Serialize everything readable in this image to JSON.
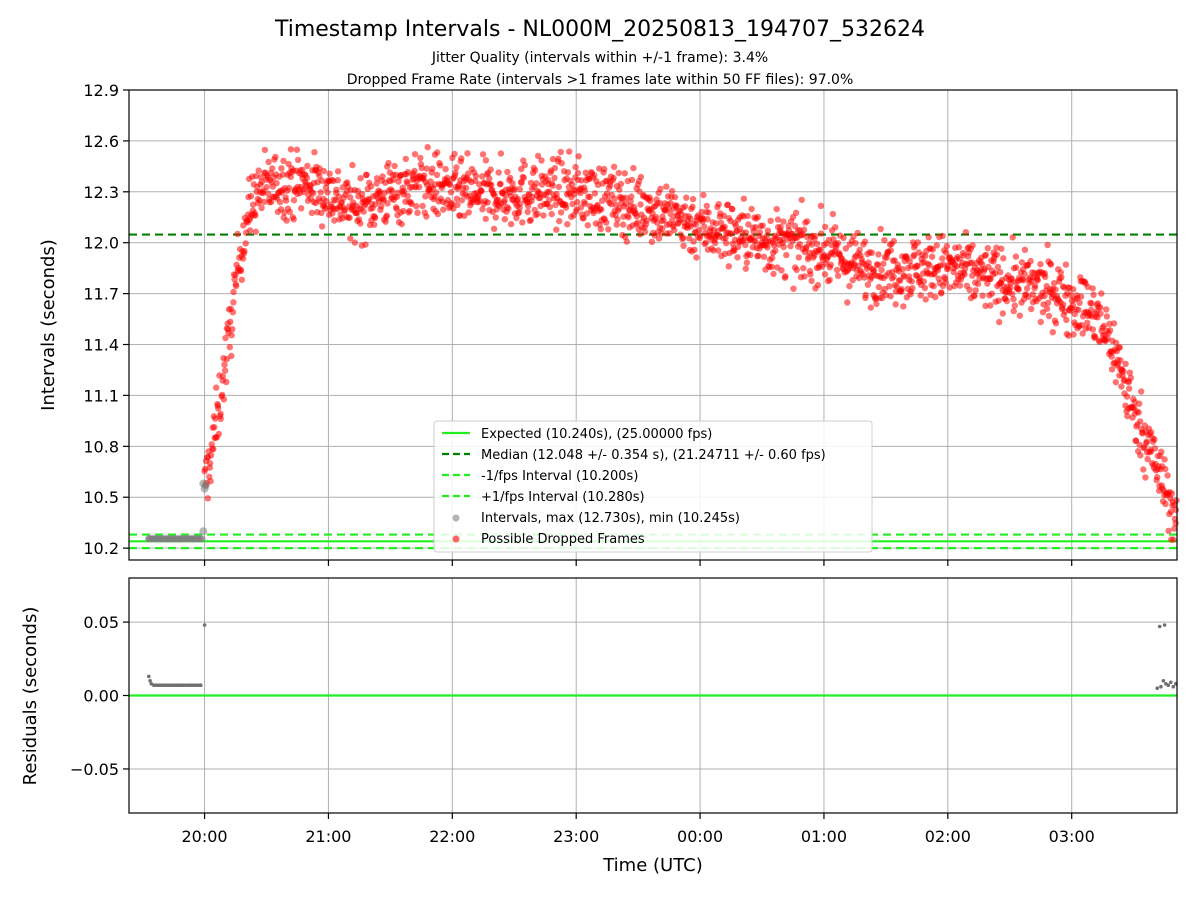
{
  "chart_data": {
    "type": "scatter",
    "title": "Timestamp Intervals - NL000M_20250813_194707_532624",
    "subtitle_lines": [
      "Jitter Quality (intervals within +/-1 frame): 3.4%",
      "Dropped Frame Rate (intervals >1 frames late within 50 FF files): 97.0%"
    ],
    "xlabel": "Time (UTC)",
    "x_tick_labels": [
      "20:00",
      "21:00",
      "22:00",
      "23:00",
      "00:00",
      "01:00",
      "02:00",
      "03:00"
    ],
    "x_tick_hours": [
      0,
      1,
      2,
      3,
      4,
      5,
      6,
      7
    ],
    "x_range_hours": [
      -0.61,
      7.85
    ],
    "top_panel": {
      "ylabel": "Intervals (seconds)",
      "ylim": [
        10.13,
        12.9
      ],
      "y_ticks": [
        10.2,
        10.5,
        10.8,
        11.1,
        11.4,
        11.7,
        12.0,
        12.3,
        12.6,
        12.9
      ],
      "y_tick_labels": [
        "10.2",
        "10.5",
        "10.8",
        "11.1",
        "11.4",
        "11.7",
        "12.0",
        "12.3",
        "12.6",
        "12.9"
      ],
      "grid": true,
      "reference_lines": [
        {
          "name": "Expected (10.240s), (25.00000 fps)",
          "y": 10.24,
          "style": "solid",
          "color": "#22ee22"
        },
        {
          "name": "Median (12.048 +/- 0.354 s), (21.24711 +/- 0.60 fps)",
          "y": 12.048,
          "style": "dashed",
          "color": "#008000"
        },
        {
          "name": "-1/fps Interval (10.200s)",
          "y": 10.2,
          "style": "dashed",
          "color": "#22ee22"
        },
        {
          "name": "+1/fps Interval (10.280s)",
          "y": 10.28,
          "style": "dashed",
          "color": "#22ee22"
        }
      ],
      "scatter_series": [
        {
          "name": "Intervals, max (12.730s), min (10.245s)",
          "color": "#808080",
          "max": 12.73,
          "min": 10.245
        },
        {
          "name": "Possible Dropped Frames",
          "color": "#ff0000"
        }
      ],
      "dropped_frames_profile": {
        "x_hours": [
          0.0,
          0.05,
          0.1,
          0.15,
          0.2,
          0.25,
          0.3,
          0.35,
          0.4,
          0.45,
          0.5,
          0.6,
          0.8,
          1.0,
          1.2,
          1.5,
          1.8,
          2.0,
          2.3,
          2.6,
          3.0,
          3.3,
          3.6,
          4.0,
          4.3,
          4.6,
          5.0,
          5.3,
          5.6,
          6.0,
          6.3,
          6.6,
          6.9,
          7.1,
          7.2,
          7.3,
          7.4,
          7.5,
          7.6,
          7.7,
          7.8,
          7.85
        ],
        "center": [
          10.55,
          10.75,
          10.95,
          11.2,
          11.45,
          11.75,
          12.0,
          12.15,
          12.25,
          12.3,
          12.33,
          12.35,
          12.35,
          12.3,
          12.2,
          12.3,
          12.35,
          12.3,
          12.28,
          12.3,
          12.3,
          12.25,
          12.2,
          12.1,
          12.05,
          12.0,
          11.95,
          11.85,
          11.85,
          11.85,
          11.8,
          11.75,
          11.7,
          11.62,
          11.55,
          11.45,
          11.25,
          11.0,
          10.85,
          10.65,
          10.45,
          10.35
        ],
        "spread": [
          0.15,
          0.15,
          0.15,
          0.15,
          0.15,
          0.15,
          0.15,
          0.15,
          0.15,
          0.15,
          0.15,
          0.15,
          0.15,
          0.15,
          0.15,
          0.15,
          0.15,
          0.15,
          0.15,
          0.15,
          0.15,
          0.15,
          0.15,
          0.15,
          0.15,
          0.15,
          0.15,
          0.15,
          0.15,
          0.15,
          0.15,
          0.15,
          0.15,
          0.15,
          0.15,
          0.15,
          0.15,
          0.15,
          0.15,
          0.15,
          0.15,
          0.15
        ]
      },
      "normal_intervals": {
        "x_hours": [
          -0.45,
          -0.4,
          -0.35,
          -0.3,
          -0.25,
          -0.2,
          -0.15,
          -0.1,
          -0.05,
          -0.02
        ],
        "y": [
          10.255,
          10.255,
          10.254,
          10.254,
          10.254,
          10.254,
          10.255,
          10.254,
          10.254,
          10.255
        ]
      },
      "legend_position": "lower-center"
    },
    "bottom_panel": {
      "ylabel": "Residuals (seconds)",
      "ylim": [
        -0.08,
        0.08
      ],
      "y_ticks": [
        0.05,
        0.0,
        -0.05
      ],
      "y_tick_labels": [
        "0.05",
        "0.00",
        "−0.05"
      ],
      "grid": true,
      "zero_line_color": "#22ee22",
      "residual_points": [
        {
          "x": -0.45,
          "y": 0.013
        },
        {
          "x": -0.44,
          "y": 0.01
        },
        {
          "x": -0.43,
          "y": 0.008
        },
        {
          "x": -0.41,
          "y": 0.007
        },
        {
          "x": -0.39,
          "y": 0.007
        },
        {
          "x": -0.37,
          "y": 0.007
        },
        {
          "x": -0.35,
          "y": 0.007
        },
        {
          "x": -0.33,
          "y": 0.007
        },
        {
          "x": -0.31,
          "y": 0.007
        },
        {
          "x": -0.29,
          "y": 0.007
        },
        {
          "x": -0.27,
          "y": 0.007
        },
        {
          "x": -0.25,
          "y": 0.007
        },
        {
          "x": -0.23,
          "y": 0.007
        },
        {
          "x": -0.21,
          "y": 0.007
        },
        {
          "x": -0.19,
          "y": 0.007
        },
        {
          "x": -0.17,
          "y": 0.007
        },
        {
          "x": -0.15,
          "y": 0.007
        },
        {
          "x": -0.13,
          "y": 0.007
        },
        {
          "x": -0.11,
          "y": 0.007
        },
        {
          "x": -0.09,
          "y": 0.007
        },
        {
          "x": -0.07,
          "y": 0.007
        },
        {
          "x": -0.05,
          "y": 0.007
        },
        {
          "x": -0.03,
          "y": 0.007
        },
        {
          "x": 0.0,
          "y": 0.048
        },
        {
          "x": 7.69,
          "y": 0.005
        },
        {
          "x": 7.71,
          "y": 0.047
        },
        {
          "x": 7.72,
          "y": 0.006
        },
        {
          "x": 7.74,
          "y": 0.01
        },
        {
          "x": 7.75,
          "y": 0.048
        },
        {
          "x": 7.76,
          "y": 0.008
        },
        {
          "x": 7.78,
          "y": 0.007
        },
        {
          "x": 7.8,
          "y": 0.009
        },
        {
          "x": 7.82,
          "y": 0.006
        },
        {
          "x": 7.84,
          "y": 0.008
        }
      ]
    }
  }
}
